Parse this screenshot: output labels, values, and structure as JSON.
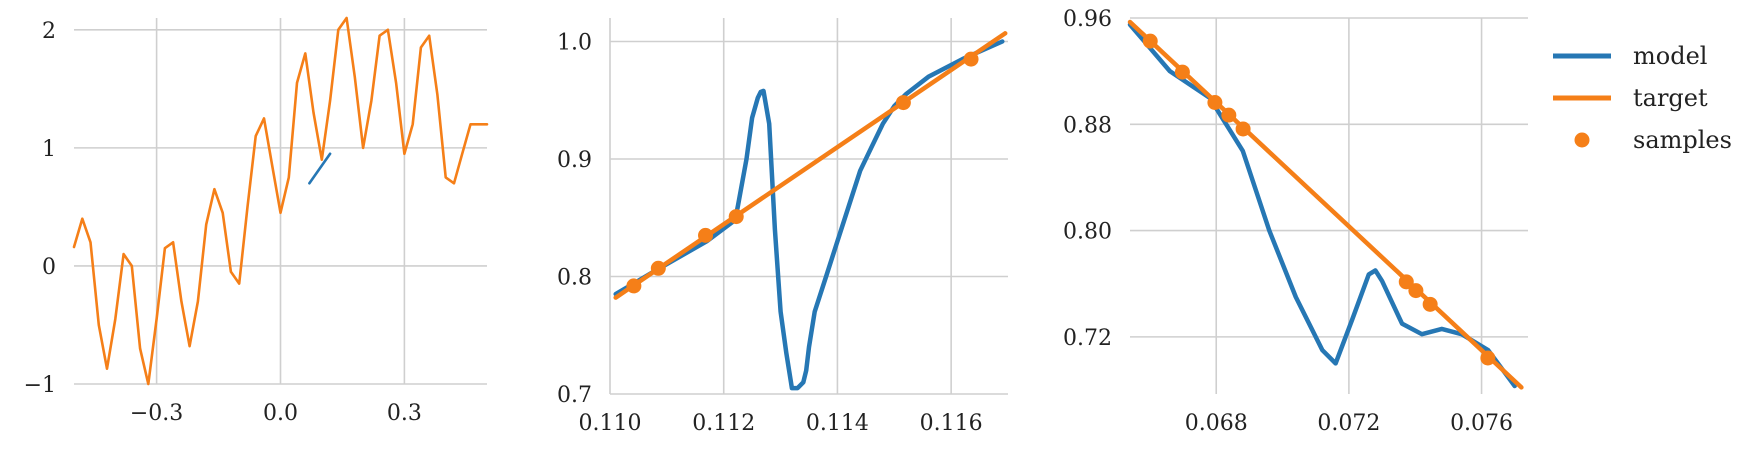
{
  "colors": {
    "model": "#2677b4",
    "target": "#f57f18",
    "grid": "#cfcfcf",
    "text": "#222222"
  },
  "legend": [
    {
      "label": "model",
      "kind": "line",
      "color": "#2677b4"
    },
    {
      "label": "target",
      "kind": "line",
      "color": "#f57f18"
    },
    {
      "label": "samples",
      "kind": "marker",
      "color": "#f57f18"
    }
  ],
  "legend_placement": "right",
  "chart_data": [
    {
      "type": "line",
      "title": "",
      "xlabel": "",
      "ylabel": "",
      "grid": true,
      "xlim": [
        -0.5,
        0.5
      ],
      "ylim": [
        -1,
        2.1
      ],
      "xticks": [
        -0.3,
        0.0,
        0.3
      ],
      "xtick_labels": [
        "−0.3",
        "0.0",
        "0.3"
      ],
      "yticks": [
        -1,
        0,
        1,
        2
      ],
      "ytick_labels": [
        "−1",
        "0",
        "1",
        "2"
      ],
      "series": [
        {
          "name": "model",
          "x": [
            0.07,
            0.12
          ],
          "y": [
            0.7,
            0.95
          ]
        },
        {
          "name": "target",
          "x": [
            -0.5,
            -0.48,
            -0.46,
            -0.44,
            -0.42,
            -0.4,
            -0.38,
            -0.36,
            -0.34,
            -0.32,
            -0.3,
            -0.28,
            -0.26,
            -0.24,
            -0.22,
            -0.2,
            -0.18,
            -0.16,
            -0.14,
            -0.12,
            -0.1,
            -0.08,
            -0.06,
            -0.04,
            -0.02,
            0.0,
            0.02,
            0.04,
            0.06,
            0.08,
            0.1,
            0.12,
            0.14,
            0.16,
            0.18,
            0.2,
            0.22,
            0.24,
            0.26,
            0.28,
            0.3,
            0.32,
            0.34,
            0.36,
            0.38,
            0.4,
            0.42,
            0.44,
            0.46,
            0.48,
            0.5
          ],
          "y": [
            0.16,
            0.4,
            0.2,
            -0.5,
            -0.87,
            -0.45,
            0.1,
            0.0,
            -0.7,
            -1.0,
            -0.45,
            0.15,
            0.2,
            -0.3,
            -0.68,
            -0.3,
            0.35,
            0.65,
            0.45,
            -0.05,
            -0.15,
            0.5,
            1.1,
            1.25,
            0.85,
            0.45,
            0.75,
            1.55,
            1.8,
            1.3,
            0.9,
            1.4,
            2.0,
            2.1,
            1.6,
            1.0,
            1.4,
            1.95,
            2.0,
            1.55,
            0.95,
            1.2,
            1.85,
            1.95,
            1.45,
            0.75,
            0.7,
            0.95,
            1.2,
            1.2,
            1.2
          ]
        }
      ]
    },
    {
      "type": "line",
      "title": "",
      "xlabel": "",
      "ylabel": "",
      "grid": true,
      "xlim": [
        0.11,
        0.117
      ],
      "ylim": [
        0.7,
        1.02
      ],
      "xticks": [
        0.11,
        0.112,
        0.114,
        0.116
      ],
      "xtick_labels": [
        "0.110",
        "0.112",
        "0.114",
        "0.116"
      ],
      "yticks": [
        0.7,
        0.8,
        0.9,
        1.0
      ],
      "ytick_labels": [
        "0.7",
        "0.8",
        "0.9",
        "1.0"
      ],
      "series": [
        {
          "name": "model",
          "x": [
            0.1101,
            0.1108,
            0.1117,
            0.1122,
            0.11225,
            0.1124,
            0.1125,
            0.1126,
            0.11265,
            0.1127,
            0.1128,
            0.1129,
            0.113,
            0.1131,
            0.1132,
            0.1133,
            0.1134,
            0.11345,
            0.1135,
            0.1136,
            0.1138,
            0.114,
            0.1142,
            0.1144,
            0.1146,
            0.1148,
            0.115,
            0.1152,
            0.1156,
            0.1162,
            0.1169
          ],
          "y": [
            0.785,
            0.805,
            0.83,
            0.848,
            0.86,
            0.9,
            0.935,
            0.952,
            0.957,
            0.958,
            0.93,
            0.84,
            0.77,
            0.735,
            0.705,
            0.705,
            0.71,
            0.72,
            0.74,
            0.77,
            0.8,
            0.83,
            0.86,
            0.89,
            0.91,
            0.93,
            0.945,
            0.955,
            0.97,
            0.985,
            1.0
          ]
        },
        {
          "name": "target",
          "x": [
            0.1101,
            0.11695
          ],
          "y": [
            0.782,
            1.007
          ]
        },
        {
          "name": "samples",
          "x": [
            0.11042,
            0.11085,
            0.11168,
            0.11222,
            0.11516,
            0.11635
          ],
          "y": [
            0.792,
            0.807,
            0.835,
            0.851,
            0.948,
            0.985
          ]
        }
      ]
    },
    {
      "type": "line",
      "title": "",
      "xlabel": "",
      "ylabel": "",
      "grid": true,
      "xlim": [
        0.0654,
        0.0774
      ],
      "ylim": [
        0.677,
        0.96
      ],
      "xticks": [
        0.068,
        0.072,
        0.076
      ],
      "xtick_labels": [
        "0.068",
        "0.072",
        "0.076"
      ],
      "yticks": [
        0.72,
        0.8,
        0.88,
        0.96
      ],
      "ytick_labels": [
        "0.72",
        "0.80",
        "0.88",
        "0.96"
      ],
      "series": [
        {
          "name": "model",
          "x": [
            0.0654,
            0.0666,
            0.0678,
            0.0688,
            0.0696,
            0.0704,
            0.0712,
            0.0716,
            0.0721,
            0.0726,
            0.0728,
            0.073,
            0.0736,
            0.0742,
            0.0748,
            0.0754,
            0.0762,
            0.077
          ],
          "y": [
            0.955,
            0.92,
            0.9,
            0.86,
            0.8,
            0.75,
            0.71,
            0.7,
            0.733,
            0.767,
            0.77,
            0.762,
            0.73,
            0.722,
            0.726,
            0.722,
            0.71,
            0.683
          ]
        },
        {
          "name": "target",
          "x": [
            0.0654,
            0.0772
          ],
          "y": [
            0.957,
            0.682
          ]
        },
        {
          "name": "samples",
          "x": [
            0.06601,
            0.06698,
            0.06796,
            0.06838,
            0.06881,
            0.07373,
            0.07402,
            0.07445,
            0.07619
          ],
          "y": [
            0.9426,
            0.9193,
            0.8964,
            0.8869,
            0.8765,
            0.7614,
            0.7548,
            0.7445,
            0.7041
          ]
        }
      ]
    }
  ]
}
